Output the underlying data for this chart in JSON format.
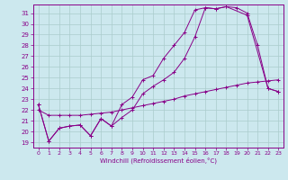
{
  "xlabel": "Windchill (Refroidissement éolien,°C)",
  "bg_color": "#cce8ee",
  "grid_color": "#aacccc",
  "line_color": "#880088",
  "xlim": [
    -0.5,
    23.5
  ],
  "ylim": [
    18.5,
    31.8
  ],
  "yticks": [
    19,
    20,
    21,
    22,
    23,
    24,
    25,
    26,
    27,
    28,
    29,
    30,
    31
  ],
  "xticks": [
    0,
    1,
    2,
    3,
    4,
    5,
    6,
    7,
    8,
    9,
    10,
    11,
    12,
    13,
    14,
    15,
    16,
    17,
    18,
    19,
    20,
    21,
    22,
    23
  ],
  "series1_x": [
    0,
    1,
    2,
    3,
    4,
    5,
    6,
    7,
    8,
    9,
    10,
    11,
    12,
    13,
    14,
    15,
    16,
    17,
    18,
    20,
    22,
    23
  ],
  "series1_y": [
    22.5,
    19.1,
    20.3,
    20.5,
    20.6,
    19.6,
    21.2,
    20.5,
    22.5,
    23.2,
    24.8,
    25.2,
    26.8,
    28.0,
    29.2,
    31.3,
    31.5,
    31.4,
    31.6,
    30.8,
    24.0,
    23.7
  ],
  "series2_x": [
    0,
    1,
    2,
    3,
    4,
    5,
    6,
    7,
    8,
    9,
    10,
    11,
    12,
    13,
    14,
    15,
    16,
    17,
    18,
    19,
    20,
    21,
    22,
    23
  ],
  "series2_y": [
    22.5,
    19.1,
    20.3,
    20.5,
    20.6,
    19.6,
    21.2,
    20.5,
    21.3,
    22.0,
    23.5,
    24.2,
    24.8,
    25.5,
    26.8,
    28.8,
    31.5,
    31.4,
    31.6,
    31.5,
    31.0,
    28.0,
    24.0,
    23.7
  ],
  "series3_x": [
    0,
    1,
    2,
    3,
    4,
    5,
    6,
    7,
    8,
    9,
    10,
    11,
    12,
    13,
    14,
    15,
    16,
    17,
    18,
    19,
    20,
    21,
    22,
    23
  ],
  "series3_y": [
    22.0,
    21.5,
    21.5,
    21.5,
    21.5,
    21.6,
    21.7,
    21.8,
    22.0,
    22.2,
    22.4,
    22.6,
    22.8,
    23.0,
    23.3,
    23.5,
    23.7,
    23.9,
    24.1,
    24.3,
    24.5,
    24.6,
    24.7,
    24.8
  ]
}
